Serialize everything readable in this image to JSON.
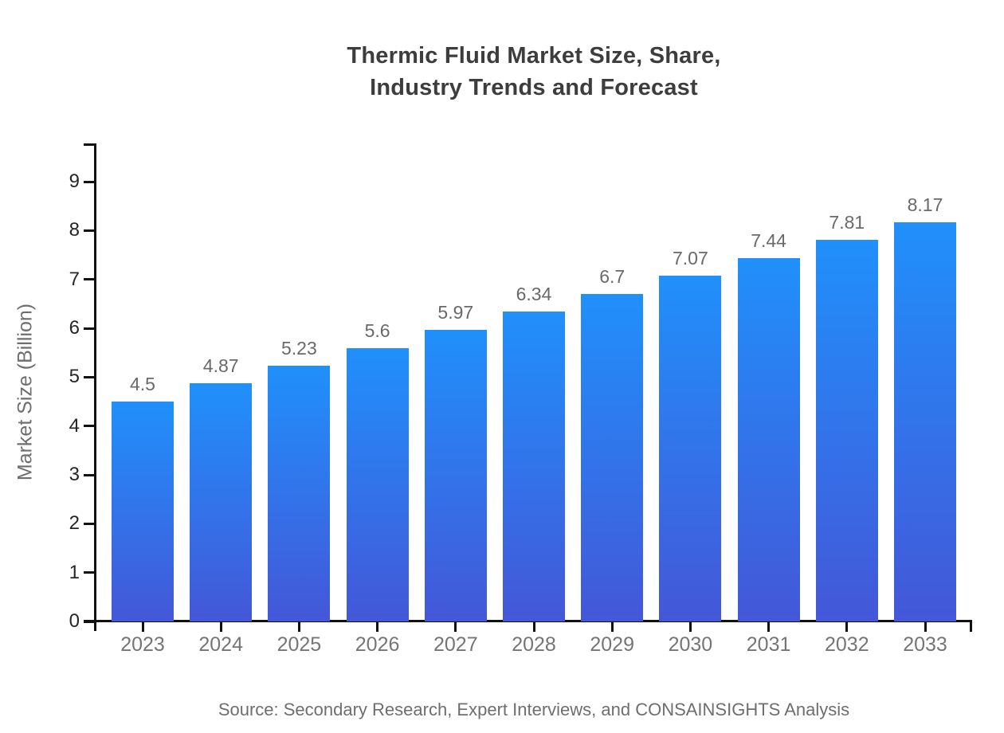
{
  "page": {
    "title_line1": "Thermic Fluid Market Size, Share,",
    "title_line2": "Industry Trends and Forecast",
    "source": "Source: Secondary Research, Expert Interviews, and CONSAINSIGHTS Analysis"
  },
  "chart_data": {
    "type": "bar",
    "title": "Thermic Fluid Market Size, Share, Industry Trends and Forecast",
    "categories": [
      "2023",
      "2024",
      "2025",
      "2026",
      "2027",
      "2028",
      "2029",
      "2030",
      "2031",
      "2032",
      "2033"
    ],
    "values": [
      4.5,
      4.87,
      5.23,
      5.6,
      5.97,
      6.34,
      6.7,
      7.07,
      7.44,
      7.81,
      8.17
    ],
    "value_labels": [
      "4.5",
      "4.87",
      "5.23",
      "5.6",
      "5.97",
      "6.34",
      "6.7",
      "7.07",
      "7.44",
      "7.81",
      "8.17"
    ],
    "xlabel": "",
    "ylabel": "Market Size (Billion)",
    "yticks": [
      0,
      1,
      2,
      3,
      4,
      5,
      6,
      7,
      8,
      9
    ],
    "ylim": [
      0,
      9.78
    ],
    "grid": false,
    "legend": false,
    "source": "Source: Secondary Research, Expert Interviews, and CONSAINSIGHTS Analysis"
  },
  "colors": {
    "background": "#ffffff",
    "axis": "#111111",
    "title_text": "#3d3d3d",
    "ytick_text": "#262626",
    "xtick_text": "#757575",
    "value_text": "#696969",
    "ylabel_text": "#6e6e6e",
    "source_text": "#6e6e6e",
    "bar_gradient_top": "#2090fb",
    "bar_gradient_bottom": "#4457d8"
  }
}
